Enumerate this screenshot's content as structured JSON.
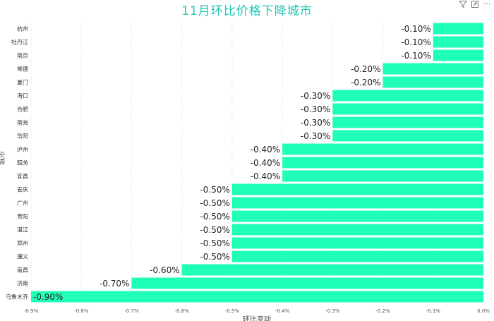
{
  "colors": {
    "bar": "#1FFFB8",
    "title": "#1FC9B3",
    "grid": "#DDDDDD",
    "text": "#222222"
  },
  "toolbar": {
    "icons": [
      "filter-icon",
      "focus-mode-icon",
      "more-options-icon"
    ],
    "more_glyph": "⋯"
  },
  "chart_data": {
    "type": "bar",
    "orientation": "horizontal",
    "title": "11月环比价格下降城市",
    "xlabel": "环比变动",
    "ylabel": "城市",
    "categories": [
      "杭州",
      "牡丹江",
      "南京",
      "常德",
      "厦门",
      "海口",
      "合肥",
      "南充",
      "岳阳",
      "泸州",
      "韶关",
      "宜昌",
      "安庆",
      "广州",
      "贵阳",
      "湛江",
      "郑州",
      "遵义",
      "南昌",
      "济南",
      "乌鲁木齐"
    ],
    "values": [
      -0.1,
      -0.1,
      -0.1,
      -0.2,
      -0.2,
      -0.3,
      -0.3,
      -0.3,
      -0.3,
      -0.4,
      -0.4,
      -0.4,
      -0.5,
      -0.5,
      -0.5,
      -0.5,
      -0.5,
      -0.5,
      -0.6,
      -0.7,
      -0.9
    ],
    "data_labels": [
      "-0.10%",
      "-0.10%",
      "-0.10%",
      "-0.20%",
      "-0.20%",
      "-0.30%",
      "-0.30%",
      "-0.30%",
      "-0.30%",
      "-0.40%",
      "-0.40%",
      "-0.40%",
      "-0.50%",
      "-0.50%",
      "-0.50%",
      "-0.50%",
      "-0.50%",
      "-0.50%",
      "-0.60%",
      "-0.70%",
      "-0.90%"
    ],
    "xlim": [
      -0.9,
      0.0
    ],
    "xticks": [
      "-0.9%",
      "-0.8%",
      "-0.7%",
      "-0.6%",
      "-0.5%",
      "-0.4%",
      "-0.3%",
      "-0.2%",
      "-0.1%",
      "0.0%"
    ],
    "grid": true
  }
}
